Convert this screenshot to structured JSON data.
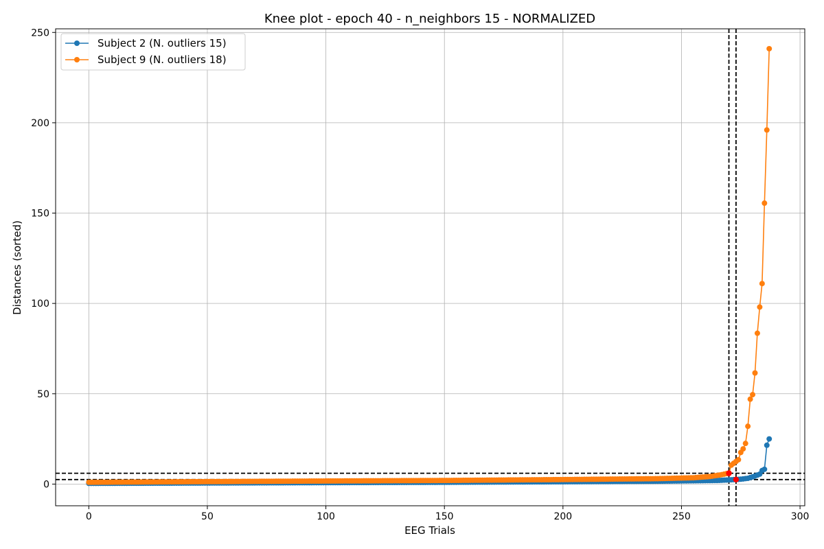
{
  "chart_data": {
    "type": "line",
    "title": "Knee plot - epoch 40 - n_neighbors 15 - NORMALIZED",
    "xlabel": "EEG Trials",
    "ylabel": "Distances (sorted)",
    "xlim": [
      -14,
      302
    ],
    "ylim": [
      -12,
      252
    ],
    "xticks": [
      0,
      50,
      100,
      150,
      200,
      250,
      300
    ],
    "yticks": [
      0,
      50,
      100,
      150,
      200,
      250
    ],
    "grid": true,
    "legend_position": "top-left",
    "markers": "circle",
    "series": [
      {
        "name": "Subject 2 (N. outliers 15)",
        "color": "#1f77b4",
        "anchors_x": [
          0,
          50,
          100,
          150,
          200,
          240,
          265,
          270,
          275,
          278,
          279,
          280,
          281,
          282,
          283
        ],
        "anchors_y": [
          0.4,
          0.6,
          0.8,
          1.0,
          1.3,
          1.6,
          2.0,
          2.3,
          2.7,
          3.2,
          3.6,
          4.0,
          4.5,
          5.0,
          5.5
        ],
        "x_last": [
          284,
          285,
          286,
          287
        ],
        "y_last": [
          7.5,
          8.2,
          21.5,
          25.0
        ],
        "n_points": 288
      },
      {
        "name": "Subject 9 (N. outliers 18)",
        "color": "#ff7f0e",
        "anchors_x": [
          0,
          40,
          100,
          150,
          200,
          240,
          255,
          262,
          266,
          268
        ],
        "anchors_y": [
          1.0,
          1.3,
          1.7,
          2.0,
          2.5,
          3.0,
          3.5,
          4.2,
          5.0,
          5.5
        ],
        "x_last": [
          269,
          270,
          271,
          272,
          273,
          274,
          275,
          276,
          277,
          278,
          279,
          280,
          281,
          282,
          283,
          284,
          285,
          286,
          287
        ],
        "y_last": [
          5.8,
          6.0,
          10.5,
          11.5,
          12.5,
          13.5,
          17.5,
          19.5,
          22.5,
          32.0,
          47.0,
          49.5,
          61.5,
          83.5,
          98.0,
          111.0,
          155.5,
          196.0,
          241.0
        ],
        "n_points": 288
      }
    ],
    "knee_points": {
      "color": "#ff0000",
      "points": [
        {
          "x": 270,
          "y": 6.0
        },
        {
          "x": 273,
          "y": 2.5
        }
      ]
    },
    "reference_lines": {
      "style": "dashed",
      "color": "#000000",
      "vertical_x": [
        270,
        273
      ],
      "horizontal_y": [
        6.0,
        2.5
      ]
    }
  }
}
